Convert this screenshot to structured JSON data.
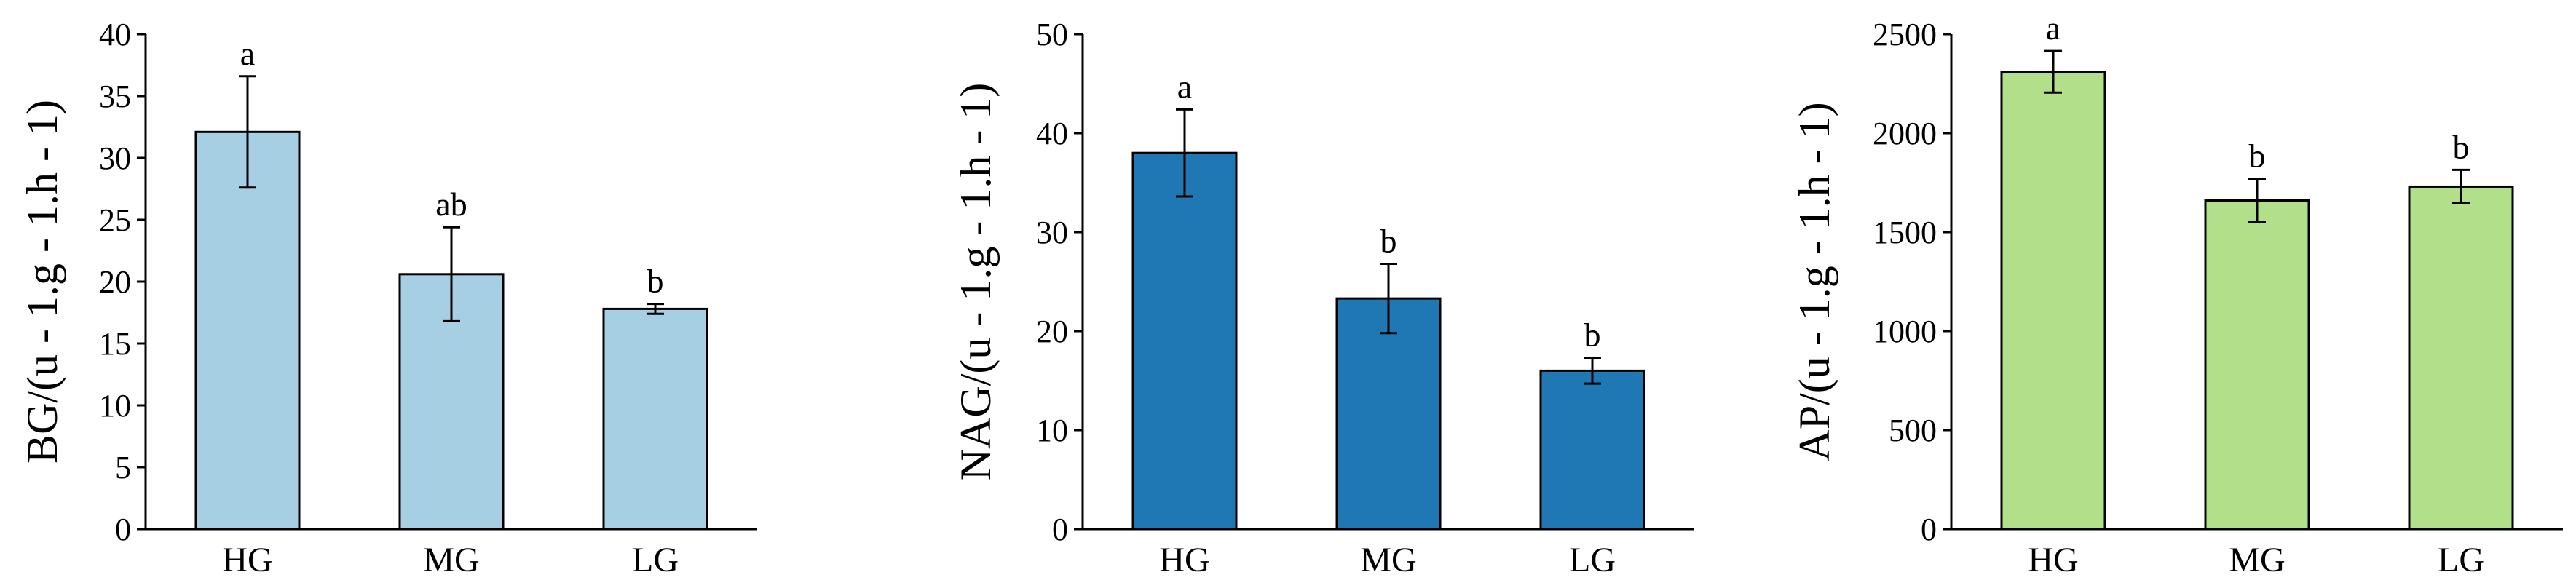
{
  "chart_data": [
    {
      "type": "bar",
      "title": "",
      "xlabel": "",
      "ylabel": "BG/(u⁻¹·g⁻¹·h⁻¹)",
      "ylabel_text": "BG/(u - 1.g - 1.h - 1)",
      "categories": [
        "HG",
        "MG",
        "LG"
      ],
      "values": [
        32.1,
        20.6,
        17.8
      ],
      "errors": [
        4.5,
        3.8,
        0.4
      ],
      "significance": [
        "a",
        "ab",
        "b"
      ],
      "ylim": [
        0,
        40
      ],
      "yticks": [
        0,
        5,
        10,
        15,
        20,
        25,
        30,
        35,
        40
      ],
      "color": "#a6cfe3",
      "grid": false
    },
    {
      "type": "bar",
      "title": "",
      "xlabel": "",
      "ylabel": "NAG/(u⁻¹·g⁻¹·h⁻¹)",
      "ylabel_text": "NAG/(u - 1.g - 1.h - 1)",
      "categories": [
        "HG",
        "MG",
        "LG"
      ],
      "values": [
        38,
        23.3,
        16
      ],
      "errors": [
        4.4,
        3.5,
        1.3
      ],
      "significance": [
        "a",
        "b",
        "b"
      ],
      "ylim": [
        0,
        50
      ],
      "yticks": [
        0,
        10,
        20,
        30,
        40,
        50
      ],
      "color": "#1f77b4",
      "grid": false
    },
    {
      "type": "bar",
      "title": "",
      "xlabel": "",
      "ylabel": "AP/(u⁻¹·g⁻¹·h⁻¹)",
      "ylabel_text": "AP/(u - 1.g - 1.h - 1)",
      "categories": [
        "HG",
        "MG",
        "LG"
      ],
      "values": [
        2310,
        1660,
        1730
      ],
      "errors": [
        105,
        110,
        85
      ],
      "significance": [
        "a",
        "b",
        "b"
      ],
      "ylim": [
        0,
        2500
      ],
      "yticks": [
        0,
        500,
        1000,
        1500,
        2000,
        2500
      ],
      "color": "#b2df8a",
      "grid": false
    }
  ]
}
